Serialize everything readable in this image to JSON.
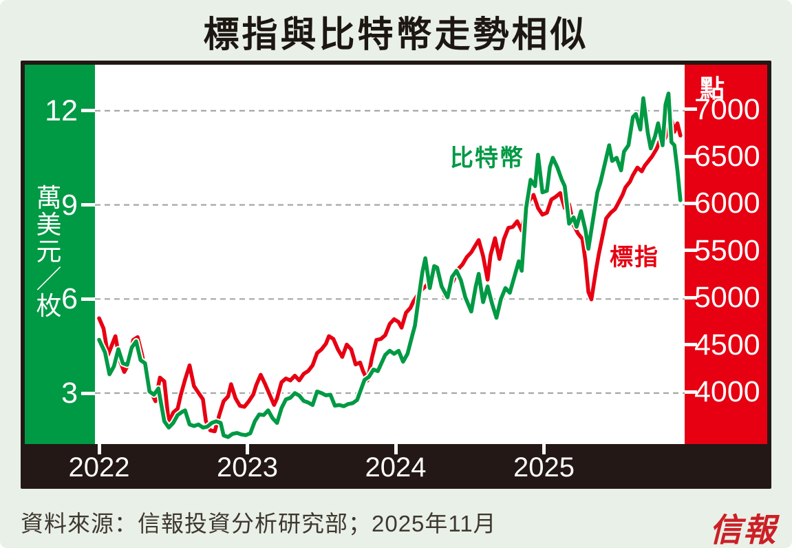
{
  "header": {
    "title": "標指與比特幣走勢相似"
  },
  "chart": {
    "left_axis": {
      "unit_label": "萬美元／枚",
      "ticks": [
        12,
        9,
        6,
        3
      ],
      "panel_color": "#009944",
      "text_color": "#ffffff"
    },
    "right_axis": {
      "unit_label": "點",
      "ticks": [
        7000,
        6500,
        6000,
        5500,
        5000,
        4500,
        4000
      ],
      "panel_color": "#E60012",
      "text_color": "#ffffff"
    },
    "x_axis": {
      "years": [
        "2022",
        "2023",
        "2024",
        "2025"
      ]
    },
    "legend": {
      "bitcoin": "比特幣",
      "sp": "標指"
    },
    "colors": {
      "bitcoin": "#009944",
      "sp": "#E60012",
      "grid": "#A5A6A6",
      "frame": "#231815",
      "background": "#E9F0E7"
    }
  },
  "chart_data": {
    "type": "line",
    "title": "標指與比特幣走勢相似",
    "x_unit": "decimal_year",
    "x_ticks": [
      2022,
      2023,
      2024,
      2025
    ],
    "x_range": [
      2022.0,
      2025.92
    ],
    "grid": "dashed-horizontal",
    "series": [
      {
        "name": "比特幣",
        "axis": "left",
        "unit": "萬美元／枚",
        "color": "#009944",
        "ylim_labels": [
          3,
          12
        ],
        "points": [
          [
            2022.0,
            4.7
          ],
          [
            2022.04,
            4.3
          ],
          [
            2022.07,
            3.6
          ],
          [
            2022.1,
            3.85
          ],
          [
            2022.13,
            4.4
          ],
          [
            2022.16,
            3.95
          ],
          [
            2022.19,
            3.9
          ],
          [
            2022.22,
            4.45
          ],
          [
            2022.25,
            4.65
          ],
          [
            2022.28,
            4.05
          ],
          [
            2022.31,
            3.95
          ],
          [
            2022.34,
            3.05
          ],
          [
            2022.37,
            2.95
          ],
          [
            2022.4,
            3.15
          ],
          [
            2022.44,
            2.1
          ],
          [
            2022.47,
            1.9
          ],
          [
            2022.5,
            2.05
          ],
          [
            2022.53,
            2.3
          ],
          [
            2022.56,
            2.4
          ],
          [
            2022.58,
            2.45
          ],
          [
            2022.61,
            2.0
          ],
          [
            2022.64,
            1.95
          ],
          [
            2022.67,
            2.0
          ],
          [
            2022.7,
            1.9
          ],
          [
            2022.73,
            1.93
          ],
          [
            2022.76,
            2.05
          ],
          [
            2022.79,
            2.1
          ],
          [
            2022.82,
            2.05
          ],
          [
            2022.84,
            1.65
          ],
          [
            2022.87,
            1.6
          ],
          [
            2022.9,
            1.7
          ],
          [
            2022.93,
            1.73
          ],
          [
            2022.96,
            1.68
          ],
          [
            2022.99,
            1.66
          ],
          [
            2023.02,
            1.72
          ],
          [
            2023.05,
            2.1
          ],
          [
            2023.08,
            2.32
          ],
          [
            2023.11,
            2.3
          ],
          [
            2023.14,
            2.45
          ],
          [
            2023.17,
            2.2
          ],
          [
            2023.2,
            2.05
          ],
          [
            2023.23,
            2.52
          ],
          [
            2023.26,
            2.8
          ],
          [
            2023.29,
            2.85
          ],
          [
            2023.32,
            3.0
          ],
          [
            2023.35,
            2.92
          ],
          [
            2023.38,
            2.75
          ],
          [
            2023.41,
            2.7
          ],
          [
            2023.44,
            2.62
          ],
          [
            2023.47,
            3.05
          ],
          [
            2023.5,
            3.0
          ],
          [
            2023.53,
            2.93
          ],
          [
            2023.56,
            2.95
          ],
          [
            2023.59,
            2.6
          ],
          [
            2023.62,
            2.62
          ],
          [
            2023.65,
            2.58
          ],
          [
            2023.68,
            2.65
          ],
          [
            2023.71,
            2.68
          ],
          [
            2023.74,
            2.78
          ],
          [
            2023.79,
            3.42
          ],
          [
            2023.82,
            3.52
          ],
          [
            2023.85,
            3.75
          ],
          [
            2023.88,
            3.7
          ],
          [
            2023.93,
            4.22
          ],
          [
            2023.96,
            4.35
          ],
          [
            2023.99,
            4.25
          ],
          [
            2024.02,
            4.35
          ],
          [
            2024.05,
            4.0
          ],
          [
            2024.08,
            4.25
          ],
          [
            2024.11,
            4.8
          ],
          [
            2024.13,
            5.15
          ],
          [
            2024.16,
            6.2
          ],
          [
            2024.18,
            6.85
          ],
          [
            2024.2,
            7.3
          ],
          [
            2024.23,
            6.35
          ],
          [
            2024.26,
            7.05
          ],
          [
            2024.28,
            7.0
          ],
          [
            2024.31,
            6.4
          ],
          [
            2024.35,
            6.05
          ],
          [
            2024.38,
            6.7
          ],
          [
            2024.41,
            6.9
          ],
          [
            2024.44,
            6.6
          ],
          [
            2024.47,
            6.05
          ],
          [
            2024.51,
            5.6
          ],
          [
            2024.54,
            6.4
          ],
          [
            2024.56,
            6.8
          ],
          [
            2024.59,
            5.9
          ],
          [
            2024.62,
            6.4
          ],
          [
            2024.65,
            5.85
          ],
          [
            2024.68,
            5.4
          ],
          [
            2024.71,
            6.0
          ],
          [
            2024.74,
            6.35
          ],
          [
            2024.77,
            6.2
          ],
          [
            2024.8,
            6.7
          ],
          [
            2024.83,
            7.2
          ],
          [
            2024.85,
            6.9
          ],
          [
            2024.88,
            8.9
          ],
          [
            2024.91,
            9.8
          ],
          [
            2024.94,
            9.6
          ],
          [
            2024.96,
            10.6
          ],
          [
            2024.99,
            9.4
          ],
          [
            2025.02,
            9.45
          ],
          [
            2025.04,
            10.2
          ],
          [
            2025.06,
            10.5
          ],
          [
            2025.09,
            10.2
          ],
          [
            2025.12,
            9.8
          ],
          [
            2025.14,
            9.6
          ],
          [
            2025.17,
            8.4
          ],
          [
            2025.2,
            8.6
          ],
          [
            2025.22,
            8.3
          ],
          [
            2025.25,
            8.8
          ],
          [
            2025.28,
            8.2
          ],
          [
            2025.3,
            7.6
          ],
          [
            2025.33,
            8.5
          ],
          [
            2025.36,
            9.4
          ],
          [
            2025.38,
            9.7
          ],
          [
            2025.41,
            10.3
          ],
          [
            2025.44,
            10.9
          ],
          [
            2025.46,
            10.4
          ],
          [
            2025.49,
            10.5
          ],
          [
            2025.52,
            10.1
          ],
          [
            2025.54,
            10.7
          ],
          [
            2025.57,
            10.9
          ],
          [
            2025.6,
            11.8
          ],
          [
            2025.62,
            11.9
          ],
          [
            2025.65,
            11.4
          ],
          [
            2025.67,
            12.4
          ],
          [
            2025.7,
            11.3
          ],
          [
            2025.72,
            10.8
          ],
          [
            2025.75,
            11.2
          ],
          [
            2025.77,
            11.6
          ],
          [
            2025.8,
            10.9
          ],
          [
            2025.82,
            12.2
          ],
          [
            2025.84,
            12.55
          ],
          [
            2025.86,
            11.0
          ],
          [
            2025.88,
            10.9
          ],
          [
            2025.9,
            10.1
          ],
          [
            2025.92,
            9.15
          ]
        ]
      },
      {
        "name": "標指",
        "axis": "right",
        "unit": "點",
        "color": "#E60012",
        "ylim_labels": [
          4000,
          7000
        ],
        "points": [
          [
            2022.0,
            4780
          ],
          [
            2022.03,
            4670
          ],
          [
            2022.06,
            4390
          ],
          [
            2022.09,
            4510
          ],
          [
            2022.11,
            4590
          ],
          [
            2022.14,
            4330
          ],
          [
            2022.17,
            4210
          ],
          [
            2022.2,
            4300
          ],
          [
            2022.23,
            4550
          ],
          [
            2022.26,
            4580
          ],
          [
            2022.29,
            4390
          ],
          [
            2022.32,
            4130
          ],
          [
            2022.35,
            4000
          ],
          [
            2022.38,
            3900
          ],
          [
            2022.41,
            4150
          ],
          [
            2022.44,
            4110
          ],
          [
            2022.47,
            3670
          ],
          [
            2022.5,
            3780
          ],
          [
            2022.53,
            3820
          ],
          [
            2022.55,
            3960
          ],
          [
            2022.58,
            4130
          ],
          [
            2022.61,
            4280
          ],
          [
            2022.64,
            4060
          ],
          [
            2022.67,
            3990
          ],
          [
            2022.7,
            3920
          ],
          [
            2022.72,
            3690
          ],
          [
            2022.75,
            3590
          ],
          [
            2022.78,
            3580
          ],
          [
            2022.81,
            3750
          ],
          [
            2022.84,
            3900
          ],
          [
            2022.87,
            3950
          ],
          [
            2022.89,
            4080
          ],
          [
            2022.92,
            3930
          ],
          [
            2022.95,
            3850
          ],
          [
            2022.98,
            3840
          ],
          [
            2023.01,
            3900
          ],
          [
            2023.04,
            3970
          ],
          [
            2023.06,
            4070
          ],
          [
            2023.09,
            4180
          ],
          [
            2023.12,
            4080
          ],
          [
            2023.15,
            3970
          ],
          [
            2023.18,
            3860
          ],
          [
            2023.2,
            3930
          ],
          [
            2023.23,
            4100
          ],
          [
            2023.26,
            4140
          ],
          [
            2023.29,
            4120
          ],
          [
            2023.32,
            4170
          ],
          [
            2023.35,
            4120
          ],
          [
            2023.38,
            4190
          ],
          [
            2023.41,
            4220
          ],
          [
            2023.44,
            4280
          ],
          [
            2023.47,
            4410
          ],
          [
            2023.5,
            4450
          ],
          [
            2023.53,
            4510
          ],
          [
            2023.55,
            4590
          ],
          [
            2023.58,
            4560
          ],
          [
            2023.61,
            4450
          ],
          [
            2023.64,
            4370
          ],
          [
            2023.67,
            4500
          ],
          [
            2023.7,
            4450
          ],
          [
            2023.73,
            4290
          ],
          [
            2023.76,
            4310
          ],
          [
            2023.78,
            4220
          ],
          [
            2023.81,
            4120
          ],
          [
            2023.84,
            4360
          ],
          [
            2023.87,
            4550
          ],
          [
            2023.9,
            4560
          ],
          [
            2023.93,
            4600
          ],
          [
            2023.96,
            4720
          ],
          [
            2023.99,
            4770
          ],
          [
            2024.02,
            4740
          ],
          [
            2024.04,
            4680
          ],
          [
            2024.07,
            4840
          ],
          [
            2024.1,
            4890
          ],
          [
            2024.12,
            4960
          ],
          [
            2024.15,
            5030
          ],
          [
            2024.18,
            5090
          ],
          [
            2024.21,
            5130
          ],
          [
            2024.24,
            5230
          ],
          [
            2024.27,
            5250
          ],
          [
            2024.3,
            5200
          ],
          [
            2024.33,
            5020
          ],
          [
            2024.36,
            5100
          ],
          [
            2024.39,
            5180
          ],
          [
            2024.42,
            5300
          ],
          [
            2024.45,
            5350
          ],
          [
            2024.48,
            5430
          ],
          [
            2024.51,
            5480
          ],
          [
            2024.54,
            5560
          ],
          [
            2024.56,
            5610
          ],
          [
            2024.59,
            5440
          ],
          [
            2024.62,
            5190
          ],
          [
            2024.64,
            5450
          ],
          [
            2024.67,
            5630
          ],
          [
            2024.7,
            5410
          ],
          [
            2024.73,
            5620
          ],
          [
            2024.76,
            5740
          ],
          [
            2024.79,
            5750
          ],
          [
            2024.82,
            5810
          ],
          [
            2024.85,
            5710
          ],
          [
            2024.87,
            5870
          ],
          [
            2024.9,
            6030
          ],
          [
            2024.93,
            6090
          ],
          [
            2024.96,
            5950
          ],
          [
            2024.99,
            5880
          ],
          [
            2025.02,
            5900
          ],
          [
            2025.05,
            6040
          ],
          [
            2025.08,
            6070
          ],
          [
            2025.11,
            6110
          ],
          [
            2025.14,
            5950
          ],
          [
            2025.17,
            5990
          ],
          [
            2025.2,
            5770
          ],
          [
            2025.23,
            5680
          ],
          [
            2025.26,
            5620
          ],
          [
            2025.28,
            5390
          ],
          [
            2025.3,
            5060
          ],
          [
            2025.32,
            4980
          ],
          [
            2025.35,
            5280
          ],
          [
            2025.37,
            5460
          ],
          [
            2025.4,
            5690
          ],
          [
            2025.42,
            5840
          ],
          [
            2025.45,
            5900
          ],
          [
            2025.48,
            5940
          ],
          [
            2025.5,
            6000
          ],
          [
            2025.53,
            6090
          ],
          [
            2025.55,
            6170
          ],
          [
            2025.58,
            6230
          ],
          [
            2025.6,
            6300
          ],
          [
            2025.63,
            6380
          ],
          [
            2025.66,
            6340
          ],
          [
            2025.68,
            6400
          ],
          [
            2025.71,
            6460
          ],
          [
            2025.73,
            6500
          ],
          [
            2025.76,
            6580
          ],
          [
            2025.78,
            6660
          ],
          [
            2025.8,
            6640
          ],
          [
            2025.82,
            6700
          ],
          [
            2025.84,
            6840
          ],
          [
            2025.86,
            6890
          ],
          [
            2025.88,
            6760
          ],
          [
            2025.9,
            6850
          ],
          [
            2025.92,
            6720
          ]
        ]
      }
    ]
  },
  "footer": {
    "source": "資料來源：信報投資分析研究部；2025年11月",
    "logo": "信報"
  }
}
